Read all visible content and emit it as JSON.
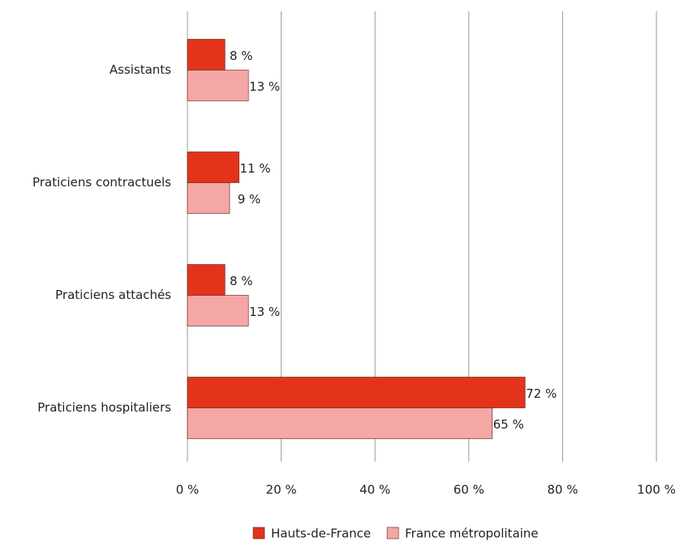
{
  "chart_data": {
    "type": "barh",
    "categories": [
      "Assistants",
      "Praticiens contractuels",
      "Praticiens attachés",
      "Praticiens hospitaliers"
    ],
    "series": [
      {
        "name": "Hauts-de-France",
        "color": "#e3341b",
        "values": [
          8,
          11,
          8,
          72
        ],
        "value_labels": [
          "8 %",
          "11 %",
          "8 %",
          "72 %"
        ]
      },
      {
        "name": "France métropolitaine",
        "color": "#f4a7a4",
        "values": [
          13,
          9,
          13,
          65
        ],
        "value_labels": [
          "13 %",
          "9 %",
          "13 %",
          "65 %"
        ]
      }
    ],
    "xlim": [
      0,
      100
    ],
    "xticks": [
      {
        "value": 0,
        "label": "0 %"
      },
      {
        "value": 20,
        "label": "20 %"
      },
      {
        "value": 40,
        "label": "40 %"
      },
      {
        "value": 60,
        "label": "60 %"
      },
      {
        "value": 80,
        "label": "80 %"
      },
      {
        "value": 100,
        "label": "100 %"
      }
    ],
    "grid": true,
    "legend": "bottom"
  }
}
